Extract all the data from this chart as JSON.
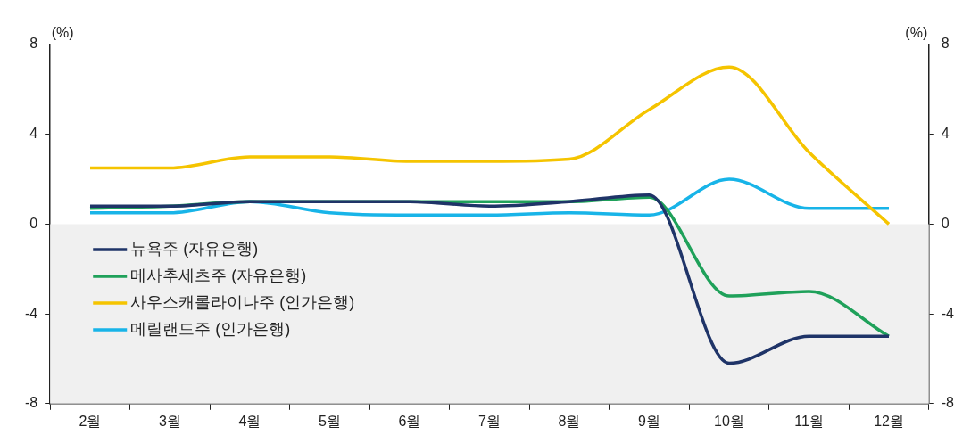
{
  "chart_data": {
    "type": "line",
    "categories": [
      "2월",
      "3월",
      "4월",
      "5월",
      "6월",
      "7월",
      "8월",
      "9월",
      "10월",
      "11월",
      "12월"
    ],
    "series": [
      {
        "name": "뉴욕주 (자유은행)",
        "color": "#1f3468",
        "values": [
          0.8,
          0.8,
          1.0,
          1.0,
          1.0,
          0.8,
          1.0,
          1.3,
          -6.2,
          -5.0,
          -5.0
        ]
      },
      {
        "name": "메사추세츠주 (자유은행)",
        "color": "#1fa15a",
        "values": [
          0.7,
          0.8,
          1.0,
          1.0,
          1.0,
          1.0,
          1.0,
          1.2,
          -3.2,
          -3.0,
          -5.0
        ]
      },
      {
        "name": "사우스캐롤라이나주 (인가은행)",
        "color": "#f5c400",
        "values": [
          2.5,
          2.5,
          3.0,
          3.0,
          2.8,
          2.8,
          2.9,
          5.1,
          7.0,
          3.2,
          0.0
        ]
      },
      {
        "name": "메릴랜드주 (인가은행)",
        "color": "#18b4e8",
        "values": [
          0.5,
          0.5,
          1.0,
          0.5,
          0.4,
          0.4,
          0.5,
          0.4,
          2.0,
          0.7,
          0.7
        ]
      }
    ],
    "ylabel": "(%)",
    "y2label": "(%)",
    "ylim": [
      -8,
      8
    ],
    "yticks": [
      -8,
      -4,
      0,
      4,
      8
    ],
    "y2lim": [
      -8,
      8
    ],
    "y2ticks": [
      -8,
      -4,
      0,
      4,
      8
    ],
    "bands": [
      {
        "axis": "y",
        "from": -8,
        "to": 0,
        "color": "#f0f0f0"
      }
    ],
    "grid": false,
    "legend": "bottom left",
    "marker": "none",
    "line_style": "solid"
  }
}
